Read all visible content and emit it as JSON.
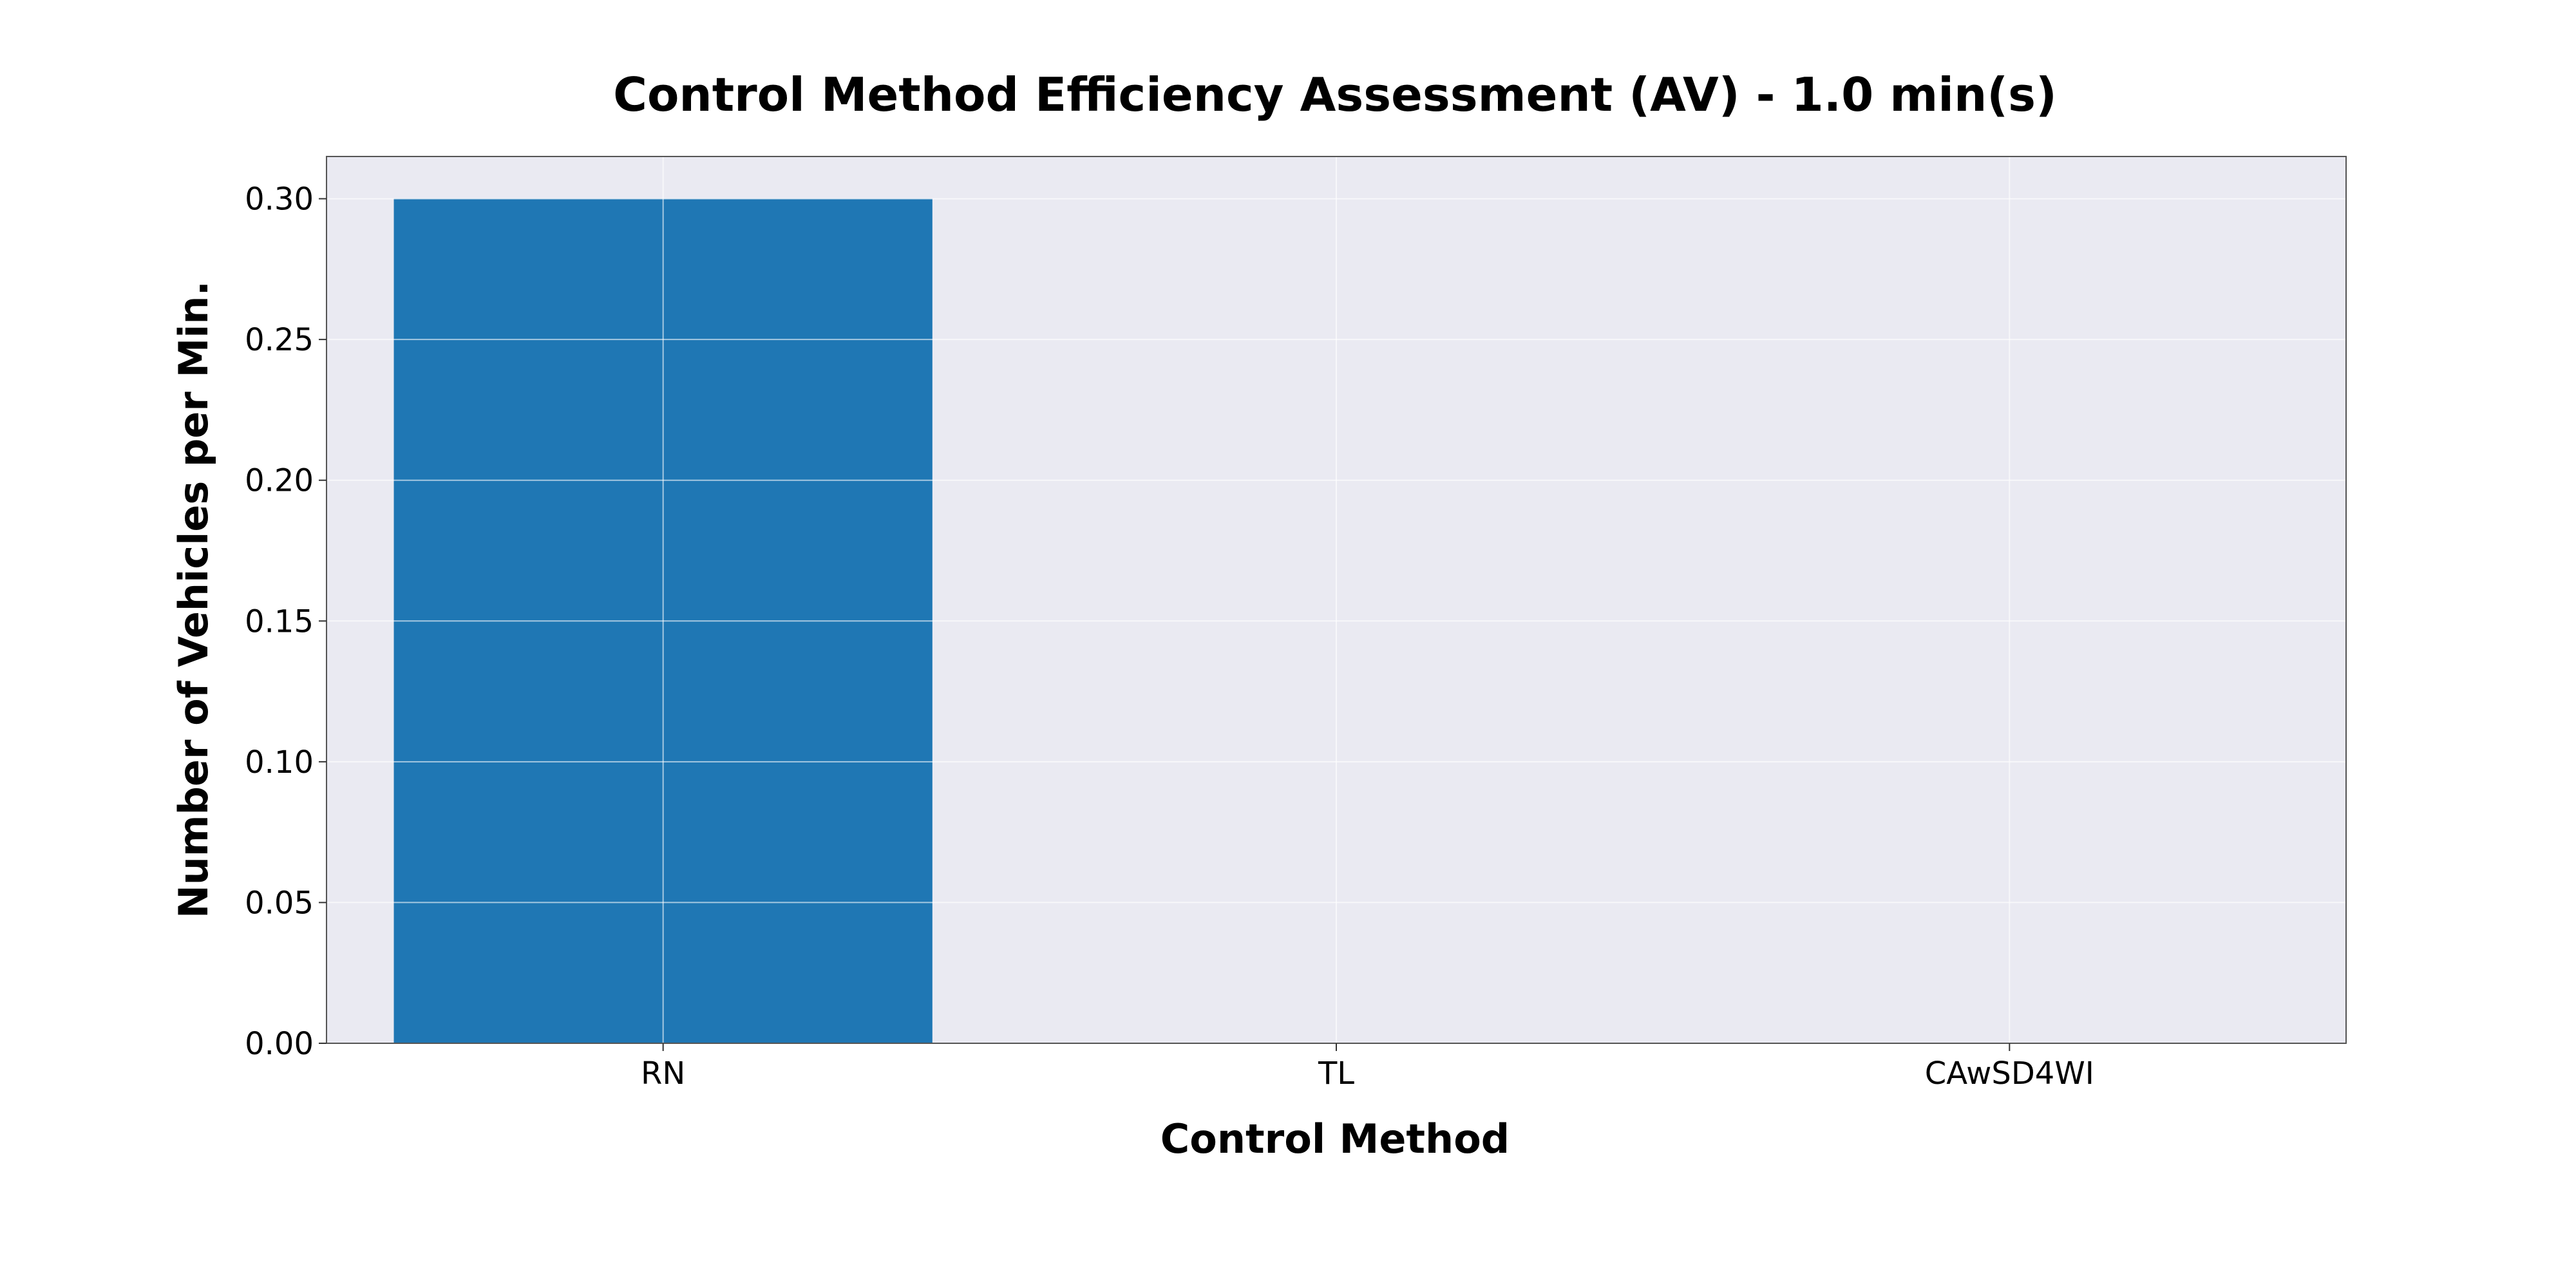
{
  "chart_data": {
    "type": "bar",
    "title": "Control Method Efficiency Assessment (AV) - 1.0 min(s)",
    "xlabel": "Control Method",
    "ylabel": "Number of Vehicles per Min.",
    "categories": [
      "RN",
      "TL",
      "CAwSD4WI"
    ],
    "values": [
      0.3,
      0.0,
      0.0
    ],
    "ylim": [
      0,
      0.315
    ],
    "yticks": [
      "0.00",
      "0.05",
      "0.10",
      "0.15",
      "0.20",
      "0.25",
      "0.30"
    ],
    "ytick_values": [
      0,
      0.05,
      0.1,
      0.15,
      0.2,
      0.25,
      0.3
    ],
    "grid": true,
    "legend": "none",
    "colors": {
      "bar": "#1f77b4",
      "plot_background": "#eaeaf2",
      "grid": "#ffffff",
      "frame": "#555555"
    }
  }
}
